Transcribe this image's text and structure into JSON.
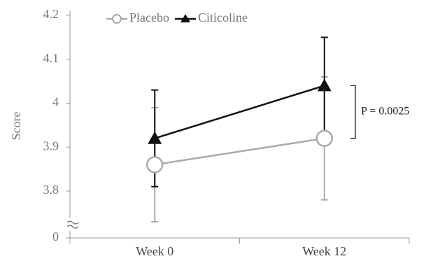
{
  "chart_data": {
    "type": "line",
    "y_label": "Score",
    "categories": [
      "Week 0",
      "Week 12"
    ],
    "series": [
      {
        "name": "Placebo",
        "color": "#aaaaaa",
        "marker": "circle",
        "values": [
          3.86,
          3.92
        ],
        "errors": [
          0.13,
          0.14
        ]
      },
      {
        "name": "Citicoline",
        "color": "#111111",
        "marker": "triangle",
        "values": [
          3.92,
          4.04
        ],
        "errors": [
          0.11,
          0.11
        ]
      }
    ],
    "ylim": [
      0,
      4.2
    ],
    "yticks": [
      0,
      3.8,
      3.9,
      4,
      4.1,
      4.2
    ],
    "axis_break": true,
    "annotation": "P = 0.0025",
    "legend": "top"
  }
}
